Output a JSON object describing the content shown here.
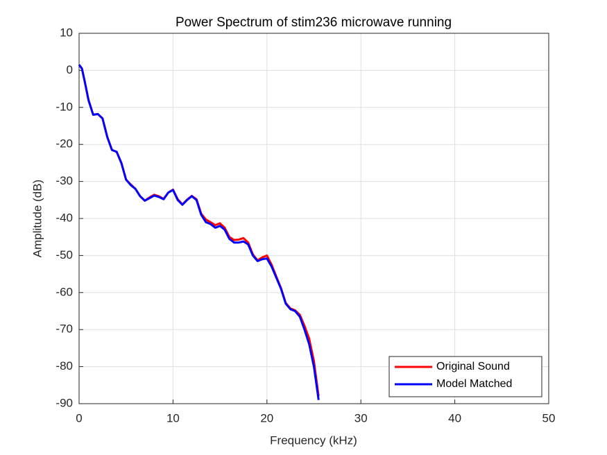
{
  "chart_data": {
    "type": "line",
    "title": "Power Spectrum of stim236 microwave running",
    "x_label": "Frequency (kHz)",
    "y_label": "Amplitude (dB)",
    "x": [
      0,
      0.3,
      0.6,
      1,
      1.5,
      2,
      2.5,
      3,
      3.5,
      4,
      4.5,
      5,
      5.5,
      6,
      6.5,
      7,
      7.5,
      8,
      8.5,
      9,
      9.5,
      10,
      10.5,
      11,
      11.5,
      12,
      12.5,
      13,
      13.5,
      14,
      14.5,
      15,
      15.5,
      16,
      16.5,
      17,
      17.5,
      18,
      18.5,
      19,
      19.5,
      20,
      20.5,
      21,
      21.5,
      22,
      22.5,
      23,
      23.5,
      24,
      24.5,
      25,
      25.5
    ],
    "series": [
      {
        "name": "Original Sound",
        "color": "#ff0000",
        "values": [
          1.5,
          0.5,
          -3,
          -8,
          -12,
          -11.8,
          -13,
          -18,
          -21.5,
          -22,
          -25,
          -29.5,
          -30.8,
          -32,
          -34,
          -35.2,
          -34.3,
          -33.6,
          -34,
          -34.7,
          -33,
          -32.2,
          -34.8,
          -36.2,
          -34.9,
          -33.9,
          -34.8,
          -38.7,
          -40.3,
          -41,
          -41.8,
          -41.3,
          -42.5,
          -45,
          -45.8,
          -45.7,
          -45.3,
          -46.5,
          -49.7,
          -51.3,
          -50.5,
          -50,
          -52.5,
          -55.7,
          -58.8,
          -62.8,
          -64.3,
          -64.8,
          -66,
          -69,
          -72.5,
          -78.5,
          -88
        ]
      },
      {
        "name": "Model Matched",
        "color": "#0000ff",
        "values": [
          1.5,
          0.5,
          -3,
          -8,
          -12,
          -11.8,
          -13,
          -18,
          -21.5,
          -22,
          -25,
          -29.5,
          -31,
          -32,
          -34,
          -35.2,
          -34.5,
          -33.8,
          -34.2,
          -34.8,
          -33,
          -32.3,
          -35,
          -36.3,
          -35,
          -34,
          -35,
          -39,
          -41,
          -41.5,
          -42.5,
          -42,
          -43,
          -45.5,
          -46.5,
          -46.5,
          -46.2,
          -47,
          -50,
          -51.5,
          -51,
          -50.8,
          -53,
          -56,
          -59,
          -63,
          -64.5,
          -65,
          -66.5,
          -70,
          -74,
          -80,
          -89
        ]
      }
    ],
    "xlim": [
      0,
      50
    ],
    "xticks": [
      0,
      10,
      20,
      30,
      40,
      50
    ],
    "ylim": [
      -90,
      10
    ],
    "yticks": [
      -90,
      -80,
      -70,
      -60,
      -50,
      -40,
      -30,
      -20,
      -10,
      0,
      10
    ],
    "grid": true,
    "legend": "southeast"
  }
}
